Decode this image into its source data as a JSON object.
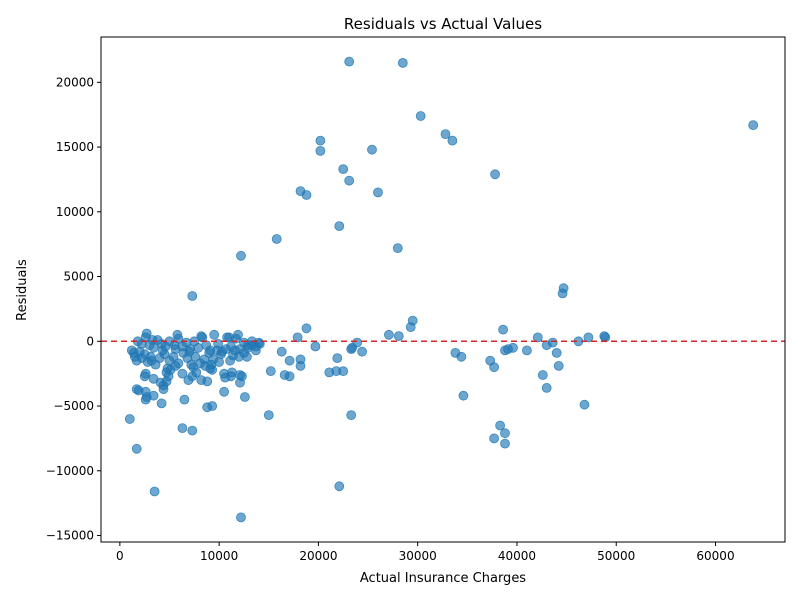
{
  "chart_data": {
    "type": "scatter",
    "title": "Residuals vs Actual Values",
    "xlabel": "Actual Insurance Charges",
    "ylabel": "Residuals",
    "xlim": [
      -1900,
      67000
    ],
    "ylim": [
      -15500,
      23500
    ],
    "xticks": [
      0,
      10000,
      20000,
      30000,
      40000,
      50000,
      60000
    ],
    "yticks": [
      -15000,
      -10000,
      -5000,
      0,
      5000,
      10000,
      15000,
      20000
    ],
    "xtick_labels": [
      "0",
      "10000",
      "20000",
      "30000",
      "40000",
      "50000",
      "60000"
    ],
    "ytick_labels": [
      "−15000",
      "−10000",
      "−5000",
      "0",
      "5000",
      "10000",
      "15000",
      "20000"
    ],
    "grid": false,
    "reference_line": {
      "y": 0,
      "color": "#d62728",
      "style": "dashed"
    },
    "point_color": "#1f77b4",
    "point_alpha": 0.65,
    "points": [
      [
        23100,
        21600
      ],
      [
        28500,
        21500
      ],
      [
        30300,
        17400
      ],
      [
        63800,
        16700
      ],
      [
        32800,
        16000
      ],
      [
        33500,
        15500
      ],
      [
        20200,
        15500
      ],
      [
        20200,
        14700
      ],
      [
        25400,
        14800
      ],
      [
        22500,
        13300
      ],
      [
        37800,
        12900
      ],
      [
        23100,
        12400
      ],
      [
        18200,
        11600
      ],
      [
        18800,
        11300
      ],
      [
        26000,
        11500
      ],
      [
        22100,
        8900
      ],
      [
        15800,
        7900
      ],
      [
        28000,
        7200
      ],
      [
        12200,
        6600
      ],
      [
        7300,
        3500
      ],
      [
        44700,
        4100
      ],
      [
        44600,
        3700
      ],
      [
        29500,
        1600
      ],
      [
        29300,
        1100
      ],
      [
        18800,
        1000
      ],
      [
        38600,
        900
      ],
      [
        27100,
        500
      ],
      [
        28100,
        400
      ],
      [
        42100,
        300
      ],
      [
        47200,
        300
      ],
      [
        48800,
        400
      ],
      [
        48900,
        300
      ],
      [
        46200,
        0
      ],
      [
        43600,
        -100
      ],
      [
        43000,
        -300
      ],
      [
        39600,
        -500
      ],
      [
        39100,
        -600
      ],
      [
        38800,
        -700
      ],
      [
        41000,
        -700
      ],
      [
        44000,
        -900
      ],
      [
        33800,
        -900
      ],
      [
        34400,
        -1200
      ],
      [
        37300,
        -1500
      ],
      [
        37700,
        -2000
      ],
      [
        44200,
        -1900
      ],
      [
        42600,
        -2600
      ],
      [
        43000,
        -3600
      ],
      [
        34600,
        -4200
      ],
      [
        46800,
        -4900
      ],
      [
        38300,
        -6500
      ],
      [
        38800,
        -7100
      ],
      [
        37700,
        -7500
      ],
      [
        38800,
        -7900
      ],
      [
        23900,
        -100
      ],
      [
        23300,
        -600
      ],
      [
        23400,
        -500
      ],
      [
        24400,
        -800
      ],
      [
        21900,
        -1300
      ],
      [
        19700,
        -400
      ],
      [
        17900,
        300
      ],
      [
        16300,
        -800
      ],
      [
        18200,
        -1400
      ],
      [
        17100,
        -1500
      ],
      [
        18200,
        -1900
      ],
      [
        21100,
        -2400
      ],
      [
        21800,
        -2300
      ],
      [
        22500,
        -2300
      ],
      [
        16600,
        -2600
      ],
      [
        17100,
        -2700
      ],
      [
        15200,
        -2300
      ],
      [
        15000,
        -5700
      ],
      [
        23300,
        -5700
      ],
      [
        22100,
        -11200
      ],
      [
        12200,
        -13600
      ],
      [
        3500,
        -11600
      ],
      [
        1700,
        -8300
      ],
      [
        1000,
        -6000
      ],
      [
        6300,
        -6700
      ],
      [
        7300,
        -6900
      ],
      [
        9300,
        -5000
      ],
      [
        8800,
        -5100
      ],
      [
        6500,
        -4500
      ],
      [
        4200,
        -4800
      ],
      [
        2600,
        -4500
      ],
      [
        2700,
        -4300
      ],
      [
        3400,
        -4200
      ],
      [
        2600,
        -3900
      ],
      [
        4400,
        -3700
      ],
      [
        1700,
        -3700
      ],
      [
        1900,
        -3800
      ],
      [
        4400,
        -3400
      ],
      [
        4100,
        -3200
      ],
      [
        4700,
        -3100
      ],
      [
        3400,
        -2900
      ],
      [
        2500,
        -2700
      ],
      [
        2600,
        -2500
      ],
      [
        4900,
        -2700
      ],
      [
        4700,
        -2400
      ],
      [
        5100,
        -2200
      ],
      [
        6300,
        -2500
      ],
      [
        6900,
        -3000
      ],
      [
        7300,
        -2700
      ],
      [
        7700,
        -2400
      ],
      [
        8200,
        -3000
      ],
      [
        8800,
        -3100
      ],
      [
        9300,
        -2200
      ],
      [
        9100,
        -2100
      ],
      [
        10500,
        -3900
      ],
      [
        10600,
        -2800
      ],
      [
        10500,
        -2500
      ],
      [
        11300,
        -2400
      ],
      [
        11200,
        -2700
      ],
      [
        12100,
        -2600
      ],
      [
        12300,
        -2700
      ],
      [
        12100,
        -3200
      ],
      [
        12600,
        -4300
      ],
      [
        1500,
        -1200
      ],
      [
        1200,
        -700
      ],
      [
        1700,
        -1500
      ],
      [
        2200,
        -1300
      ],
      [
        2500,
        -1000
      ],
      [
        2800,
        -1600
      ],
      [
        3200,
        -1500
      ],
      [
        3600,
        -1800
      ],
      [
        4000,
        -1300
      ],
      [
        4500,
        -1000
      ],
      [
        5000,
        -1500
      ],
      [
        5400,
        -1200
      ],
      [
        5900,
        -1700
      ],
      [
        6400,
        -900
      ],
      [
        6800,
        -1300
      ],
      [
        7200,
        -1800
      ],
      [
        7600,
        -1200
      ],
      [
        8100,
        -1700
      ],
      [
        8500,
        -1400
      ],
      [
        9000,
        -900
      ],
      [
        9400,
        -1400
      ],
      [
        9800,
        -700
      ],
      [
        10200,
        -1000
      ],
      [
        10700,
        -600
      ],
      [
        11100,
        -1500
      ],
      [
        11600,
        -700
      ],
      [
        12000,
        -1200
      ],
      [
        12500,
        -900
      ],
      [
        12900,
        -500
      ],
      [
        13300,
        -300
      ],
      [
        13700,
        -700
      ],
      [
        14100,
        -200
      ],
      [
        1800,
        0
      ],
      [
        2200,
        -200
      ],
      [
        2600,
        300
      ],
      [
        3000,
        -300
      ],
      [
        3400,
        -500
      ],
      [
        3800,
        100
      ],
      [
        4200,
        -200
      ],
      [
        4600,
        -400
      ],
      [
        5000,
        0
      ],
      [
        5500,
        -300
      ],
      [
        5900,
        200
      ],
      [
        6300,
        -400
      ],
      [
        6700,
        -100
      ],
      [
        7100,
        -600
      ],
      [
        7500,
        0
      ],
      [
        7900,
        -500
      ],
      [
        8300,
        300
      ],
      [
        8700,
        -300
      ],
      [
        9100,
        -700
      ],
      [
        9500,
        500
      ],
      [
        9900,
        -200
      ],
      [
        10300,
        -800
      ],
      [
        10800,
        300
      ],
      [
        11200,
        -400
      ],
      [
        11700,
        200
      ],
      [
        12100,
        -600
      ],
      [
        12500,
        -100
      ],
      [
        12900,
        -300
      ],
      [
        13300,
        0
      ],
      [
        13700,
        -400
      ],
      [
        14000,
        -100
      ],
      [
        2700,
        600
      ],
      [
        3300,
        100
      ],
      [
        5800,
        500
      ],
      [
        8200,
        400
      ],
      [
        11000,
        300
      ],
      [
        11900,
        500
      ],
      [
        1400,
        -900
      ],
      [
        2000,
        -800
      ],
      [
        3100,
        -1200
      ],
      [
        4300,
        -700
      ],
      [
        5600,
        -600
      ],
      [
        7000,
        -800
      ],
      [
        8600,
        -1900
      ],
      [
        9200,
        -1800
      ],
      [
        10000,
        -1600
      ],
      [
        11400,
        -1100
      ],
      [
        12800,
        -1200
      ],
      [
        7400,
        -2000
      ],
      [
        5600,
        -1900
      ],
      [
        4800,
        -2100
      ]
    ]
  }
}
